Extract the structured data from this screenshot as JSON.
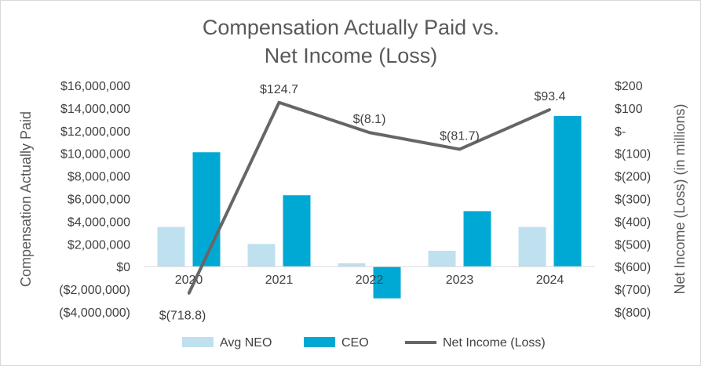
{
  "chart_data": {
    "type": "bar",
    "title_lines": [
      "Compensation Actually Paid vs.",
      "Net Income (Loss)"
    ],
    "categories": [
      "2020",
      "2021",
      "2022",
      "2023",
      "2024"
    ],
    "ylabel": "Compensation Actually Paid",
    "y2label": "Net Income (Loss) (in millions)",
    "ylim": [
      -4000000,
      16000000
    ],
    "y2lim": [
      -800,
      200
    ],
    "y_ticks": [
      16000000,
      14000000,
      12000000,
      10000000,
      8000000,
      6000000,
      4000000,
      2000000,
      0,
      -2000000,
      -4000000
    ],
    "y_tick_labels": [
      "$16,000,000",
      "$14,000,000",
      "$12,000,000",
      "$10,000,000",
      "$8,000,000",
      "$6,000,000",
      "$4,000,000",
      "$2,000,000",
      "$0",
      "($2,000,000)",
      "($4,000,000)"
    ],
    "y2_ticks": [
      200,
      100,
      0,
      -100,
      -200,
      -300,
      -400,
      -500,
      -600,
      -700,
      -800
    ],
    "y2_tick_labels": [
      "$200",
      "$100",
      "$-",
      "$(100)",
      "$(200)",
      "$(300)",
      "$(400)",
      "$(500)",
      "$(600)",
      "$(700)",
      "$(800)"
    ],
    "series": [
      {
        "name": "Avg NEO",
        "type": "bar",
        "axis": "left",
        "color": "#bfe0ee",
        "values": [
          3500000,
          2000000,
          300000,
          1400000,
          3500000
        ]
      },
      {
        "name": "CEO",
        "type": "bar",
        "axis": "left",
        "color": "#00a9d4",
        "values": [
          10100000,
          6300000,
          -2800000,
          4900000,
          13300000
        ]
      },
      {
        "name": "Net Income (Loss)",
        "type": "line",
        "axis": "right",
        "color": "#666666",
        "values": [
          -718.8,
          124.7,
          -8.1,
          -81.7,
          93.4
        ],
        "labels": [
          "$(718.8)",
          "$124.7",
          "$(8.1)",
          "$(81.7)",
          "$93.4"
        ]
      }
    ],
    "legend": [
      "Avg NEO",
      "CEO",
      "Net Income (Loss)"
    ],
    "legend_position": "bottom",
    "grid": false
  }
}
